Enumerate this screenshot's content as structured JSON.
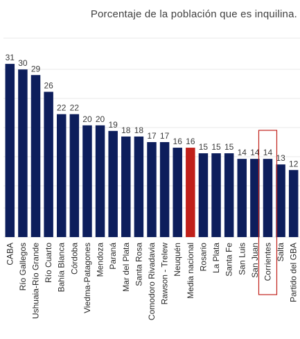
{
  "title": "Porcentaje de la población que es inquilina.",
  "colors": {
    "bar": "#0d1e5c",
    "highlight": "#c0201a",
    "box": "#c0201a"
  },
  "chart_data": {
    "type": "bar",
    "title": "Porcentaje de la población que es inquilina.",
    "xlabel": "",
    "ylabel": "",
    "ylim": [
      0,
      36
    ],
    "grid": true,
    "categories": [
      "CABA",
      "Río Gallegos",
      "Ushuaia-Río Grande",
      "Río Cuarto",
      "Bahía Blanca",
      "Córdoba",
      "Viedma-Patagones",
      "Mendoza",
      "Paraná",
      "Mar del Plata",
      "Santa Rosa",
      "Comodoro Rivadavia",
      "Rawson - Trelew",
      "Neuquén",
      "Media nacional",
      "Rosario",
      "La Plata",
      "Santa Fe",
      "San Luis",
      "San Juan",
      "Corrientes",
      "Salta",
      "Partido del GBA"
    ],
    "values": [
      31,
      30,
      29,
      26,
      22,
      22,
      20,
      20,
      19,
      18,
      18,
      17,
      17,
      16,
      16,
      15,
      15,
      15,
      14,
      14,
      14,
      13,
      12
    ],
    "highlighted_category": "Media nacional",
    "boxed_category": "Corrientes"
  }
}
